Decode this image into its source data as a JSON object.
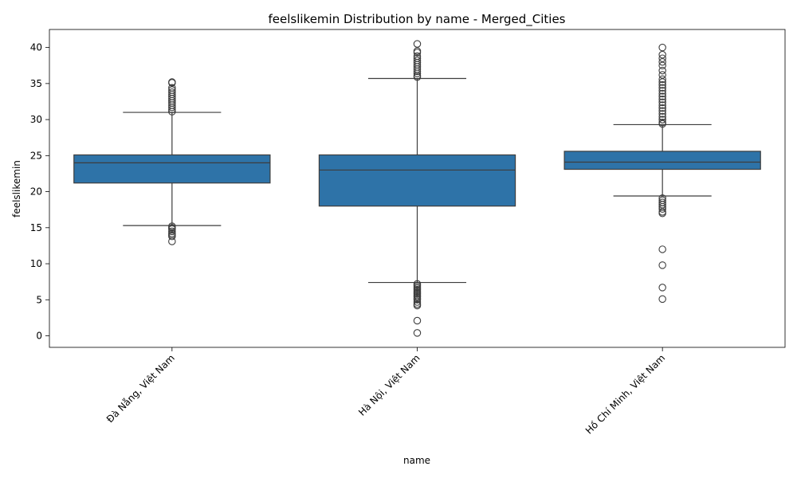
{
  "chart_data": {
    "type": "box",
    "title": "feelslikemin Distribution by name - Merged_Cities",
    "xlabel": "name",
    "ylabel": "feelslikemin",
    "ylim": [
      -1.6,
      42.5
    ],
    "yticks": [
      0,
      5,
      10,
      15,
      20,
      25,
      30,
      35,
      40
    ],
    "categories": [
      "Đà Nẵng, Việt Nam",
      "Hà Nội, Việt Nam",
      "Hồ Chí Minh, Việt Nam"
    ],
    "box_color": "#2e73a8",
    "series": [
      {
        "category": "Đà Nẵng, Việt Nam",
        "whisker_low": 15.3,
        "q1": 21.2,
        "median": 24.0,
        "q3": 25.1,
        "whisker_high": 31.0,
        "outliers": [
          35.2,
          35.1,
          34.4,
          34.1,
          33.8,
          33.5,
          33.2,
          32.9,
          32.6,
          32.3,
          32.0,
          31.7,
          31.4,
          31.1,
          15.2,
          15.0,
          14.8,
          14.5,
          14.2,
          14.0,
          13.8,
          13.1
        ]
      },
      {
        "category": "Hà Nội, Việt Nam",
        "whisker_low": 7.4,
        "q1": 18.0,
        "median": 23.0,
        "q3": 25.1,
        "whisker_high": 35.7,
        "outliers": [
          40.5,
          39.5,
          39.3,
          38.8,
          38.5,
          38.2,
          37.9,
          37.6,
          37.3,
          37.0,
          36.7,
          36.4,
          36.1,
          35.9,
          7.2,
          7.0,
          6.8,
          6.6,
          6.4,
          6.2,
          6.0,
          5.8,
          5.6,
          5.4,
          5.2,
          5.0,
          4.7,
          4.4,
          4.2,
          2.1,
          0.4
        ]
      },
      {
        "category": "Hồ Chí Minh, Việt Nam",
        "whisker_low": 19.4,
        "q1": 23.1,
        "median": 24.1,
        "q3": 25.6,
        "whisker_high": 29.3,
        "outliers": [
          40.0,
          39.0,
          38.5,
          38.0,
          37.5,
          36.8,
          36.2,
          35.6,
          35.2,
          34.8,
          34.4,
          34.0,
          33.6,
          33.2,
          32.8,
          32.4,
          32.0,
          31.6,
          31.2,
          30.8,
          30.4,
          30.0,
          29.6,
          29.4,
          19.1,
          18.8,
          18.5,
          18.2,
          17.9,
          17.6,
          17.2,
          17.0,
          12.0,
          9.8,
          6.7,
          5.1
        ]
      }
    ]
  }
}
